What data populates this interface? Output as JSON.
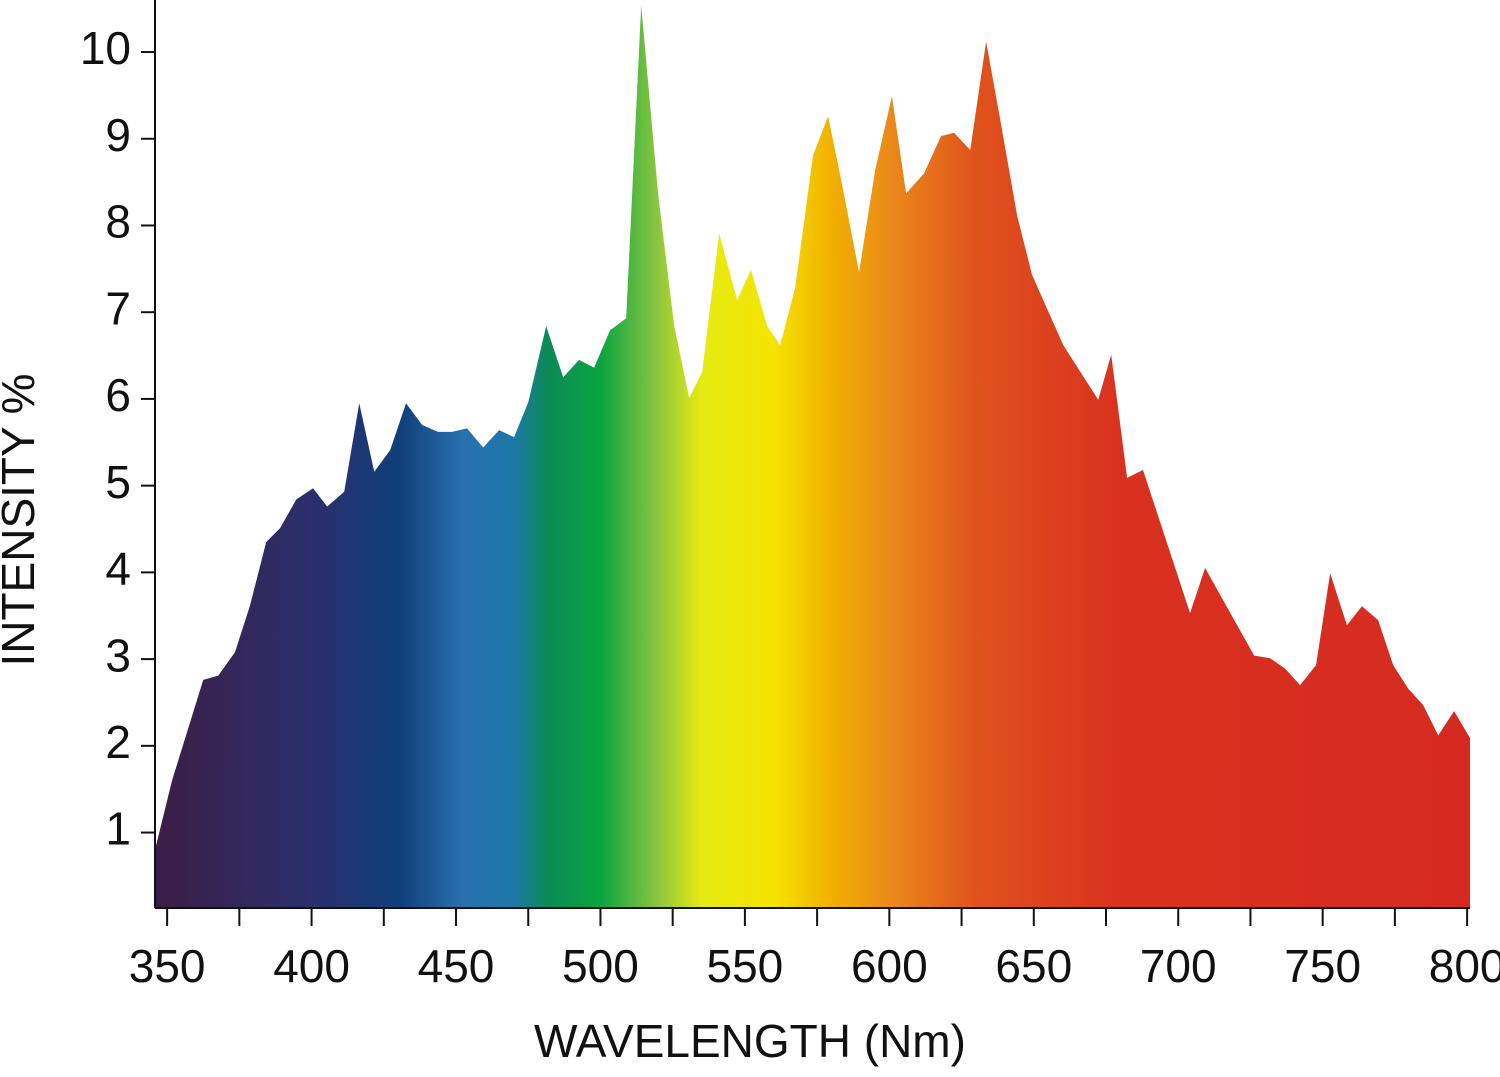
{
  "chart_data": {
    "type": "area",
    "x_label": "WAVELENGTH (Nm)",
    "y_label": "INTENSITY %",
    "x": [
      345.8,
      351.7,
      362.5,
      367.7,
      373.5,
      378.7,
      384.3,
      389.1,
      394.7,
      400.5,
      405.4,
      411.3,
      416.5,
      421.7,
      427.2,
      432.7,
      438.3,
      443.8,
      448.6,
      453.8,
      459.4,
      464.9,
      470.1,
      475.0,
      481.2,
      487.1,
      492.6,
      497.8,
      503.3,
      508.9,
      514.1,
      520.0,
      525.5,
      530.7,
      535.2,
      541.1,
      547.3,
      552.1,
      557.7,
      562.2,
      567.4,
      573.6,
      578.8,
      584.0,
      589.5,
      595.1,
      600.9,
      605.8,
      612.0,
      617.9,
      622.4,
      628.0,
      633.5,
      638.7,
      644.2,
      649.4,
      660.2,
      672.3,
      676.8,
      682.3,
      687.8,
      704.1,
      709.3,
      726.3,
      731.8,
      737.0,
      742.2,
      747.7,
      752.6,
      758.4,
      763.6,
      769.2,
      774.4,
      779.6,
      784.8,
      790.0,
      795.5,
      801.0
    ],
    "values": [
      0.8,
      1.6,
      2.76,
      2.81,
      3.08,
      3.62,
      4.35,
      4.51,
      4.84,
      4.97,
      4.76,
      4.93,
      5.95,
      5.16,
      5.41,
      5.95,
      5.7,
      5.62,
      5.62,
      5.66,
      5.44,
      5.64,
      5.56,
      5.96,
      6.84,
      6.25,
      6.45,
      6.36,
      6.79,
      6.93,
      10.54,
      8.35,
      6.85,
      6.01,
      6.31,
      7.91,
      7.14,
      7.49,
      6.84,
      6.62,
      7.28,
      8.81,
      9.26,
      8.41,
      7.46,
      8.64,
      9.49,
      8.37,
      8.6,
      9.03,
      9.07,
      8.87,
      10.12,
      9.16,
      8.12,
      7.43,
      6.62,
      5.99,
      6.51,
      5.09,
      5.18,
      3.53,
      4.05,
      3.04,
      3.01,
      2.89,
      2.7,
      2.93,
      3.99,
      3.39,
      3.61,
      3.45,
      2.93,
      2.66,
      2.47,
      2.12,
      2.4,
      2.09
    ],
    "xlim": [
      345.8,
      801.0
    ],
    "ylim": [
      0.13,
      10.6
    ],
    "xticks": [
      350,
      400,
      450,
      500,
      550,
      600,
      650,
      700,
      750,
      800
    ],
    "xminorticks": [
      375,
      425,
      475,
      525,
      575,
      625,
      675,
      725,
      775
    ],
    "yticks": [
      1,
      2,
      3,
      4,
      5,
      6,
      7,
      8,
      9,
      10
    ],
    "gradient": [
      {
        "x": 350,
        "color": "#3a1f48"
      },
      {
        "x": 400,
        "color": "#2b2f6c"
      },
      {
        "x": 430,
        "color": "#0f3f7a"
      },
      {
        "x": 452,
        "color": "#2a6fae"
      },
      {
        "x": 470,
        "color": "#1c78a8"
      },
      {
        "x": 482,
        "color": "#0b8a55"
      },
      {
        "x": 500,
        "color": "#0aa540"
      },
      {
        "x": 520,
        "color": "#8cc63f"
      },
      {
        "x": 535,
        "color": "#e6ea12"
      },
      {
        "x": 560,
        "color": "#f5e400"
      },
      {
        "x": 580,
        "color": "#f2b000"
      },
      {
        "x": 600,
        "color": "#eb8a1a"
      },
      {
        "x": 630,
        "color": "#e0521c"
      },
      {
        "x": 680,
        "color": "#d9311f"
      },
      {
        "x": 800,
        "color": "#d62a20"
      }
    ]
  }
}
